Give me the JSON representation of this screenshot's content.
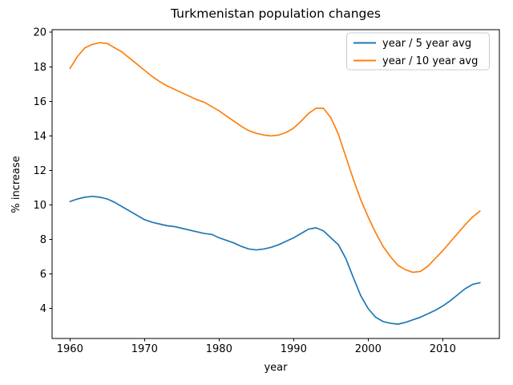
{
  "chart_data": {
    "type": "line",
    "title": "Turkmenistan population changes",
    "xlabel": "year",
    "ylabel": "% increase",
    "xlim": [
      1957.6,
      2017.6
    ],
    "ylim": [
      2.27,
      20.15
    ],
    "x_ticks": [
      1960,
      1970,
      1980,
      1990,
      2000,
      2010
    ],
    "y_ticks": [
      4,
      6,
      8,
      10,
      12,
      14,
      16,
      18,
      20
    ],
    "grid": false,
    "legend_position": "upper right",
    "x": [
      1960,
      1961,
      1962,
      1963,
      1964,
      1965,
      1966,
      1967,
      1968,
      1969,
      1970,
      1971,
      1972,
      1973,
      1974,
      1975,
      1976,
      1977,
      1978,
      1979,
      1980,
      1981,
      1982,
      1983,
      1984,
      1985,
      1986,
      1987,
      1988,
      1989,
      1990,
      1991,
      1992,
      1993,
      1994,
      1995,
      1996,
      1997,
      1998,
      1999,
      2000,
      2001,
      2002,
      2003,
      2004,
      2005,
      2006,
      2007,
      2008,
      2009,
      2010,
      2011,
      2012,
      2013,
      2014,
      2015
    ],
    "series": [
      {
        "name": "year / 5 year avg",
        "color": "#1f77b4",
        "values": [
          10.2,
          10.35,
          10.45,
          10.5,
          10.45,
          10.35,
          10.15,
          9.9,
          9.65,
          9.4,
          9.15,
          9.0,
          8.9,
          8.8,
          8.75,
          8.65,
          8.55,
          8.45,
          8.35,
          8.3,
          8.1,
          7.95,
          7.8,
          7.6,
          7.45,
          7.4,
          7.45,
          7.55,
          7.7,
          7.9,
          8.1,
          8.35,
          8.6,
          8.68,
          8.5,
          8.1,
          7.7,
          6.9,
          5.8,
          4.75,
          4.0,
          3.5,
          3.25,
          3.15,
          3.1,
          3.2,
          3.35,
          3.5,
          3.7,
          3.9,
          4.15,
          4.45,
          4.8,
          5.15,
          5.4,
          5.5
        ]
      },
      {
        "name": "year / 10 year avg",
        "color": "#ff7f0e",
        "values": [
          17.9,
          18.6,
          19.1,
          19.3,
          19.4,
          19.35,
          19.1,
          18.85,
          18.5,
          18.15,
          17.8,
          17.45,
          17.15,
          16.9,
          16.7,
          16.5,
          16.3,
          16.1,
          15.95,
          15.7,
          15.45,
          15.15,
          14.85,
          14.55,
          14.3,
          14.15,
          14.05,
          14.0,
          14.05,
          14.2,
          14.45,
          14.85,
          15.3,
          15.6,
          15.6,
          15.05,
          14.1,
          12.8,
          11.5,
          10.3,
          9.3,
          8.4,
          7.6,
          7.0,
          6.5,
          6.25,
          6.1,
          6.15,
          6.45,
          6.9,
          7.35,
          7.85,
          8.35,
          8.85,
          9.3,
          9.65
        ]
      }
    ]
  }
}
